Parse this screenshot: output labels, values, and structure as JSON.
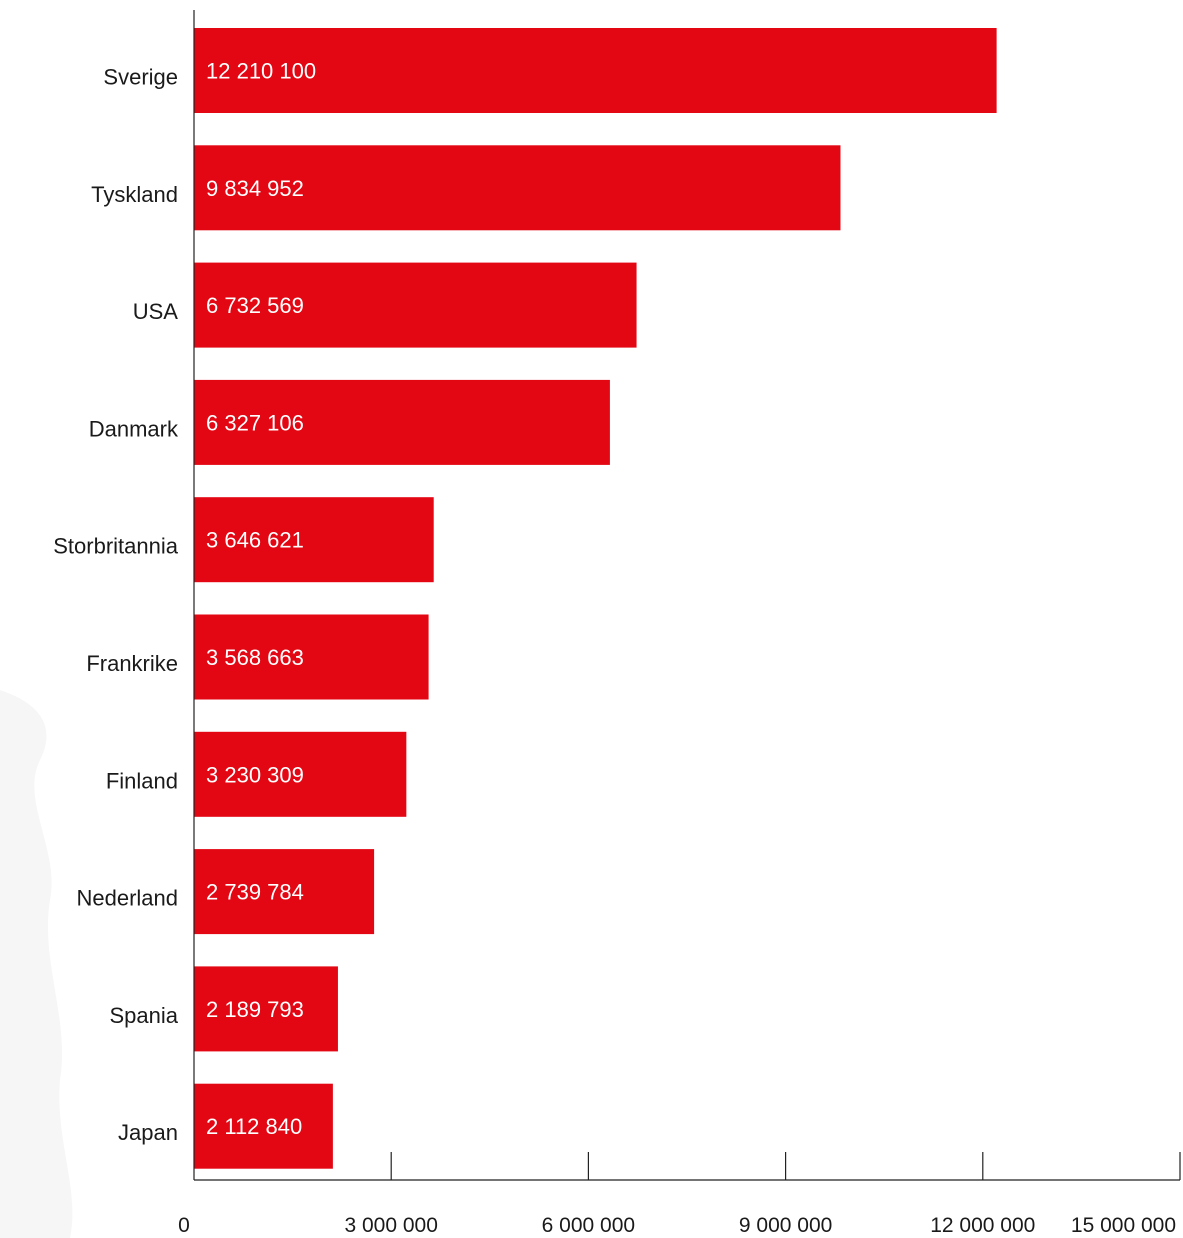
{
  "chart_data": {
    "type": "bar",
    "orientation": "horizontal",
    "categories": [
      "Sverige",
      "Tyskland",
      "USA",
      "Danmark",
      "Storbritannia",
      "Frankrike",
      "Finland",
      "Nederland",
      "Spania",
      "Japan"
    ],
    "values": [
      12210100,
      9834952,
      6732569,
      6327106,
      3646621,
      3568663,
      3230309,
      2739784,
      2189793,
      2112840
    ],
    "value_labels": [
      "12 210 100",
      "9 834 952",
      "6 732 569",
      "6 327 106",
      "3 646 621",
      "3 568 663",
      "3 230 309",
      "2 739 784",
      "2 189 793",
      "2 112 840"
    ],
    "xlim": [
      0,
      15000000
    ],
    "xticks": [
      0,
      3000000,
      6000000,
      9000000,
      12000000,
      15000000
    ],
    "xtick_labels": [
      "0",
      "3 000 000",
      "6 000 000",
      "9 000 000",
      "12 000 000",
      "15 000 000"
    ],
    "grid": false,
    "colors": {
      "bar": "#E30613",
      "axis": "#222222",
      "text": "#1a1a1a",
      "bar_text": "#ffffff"
    }
  }
}
